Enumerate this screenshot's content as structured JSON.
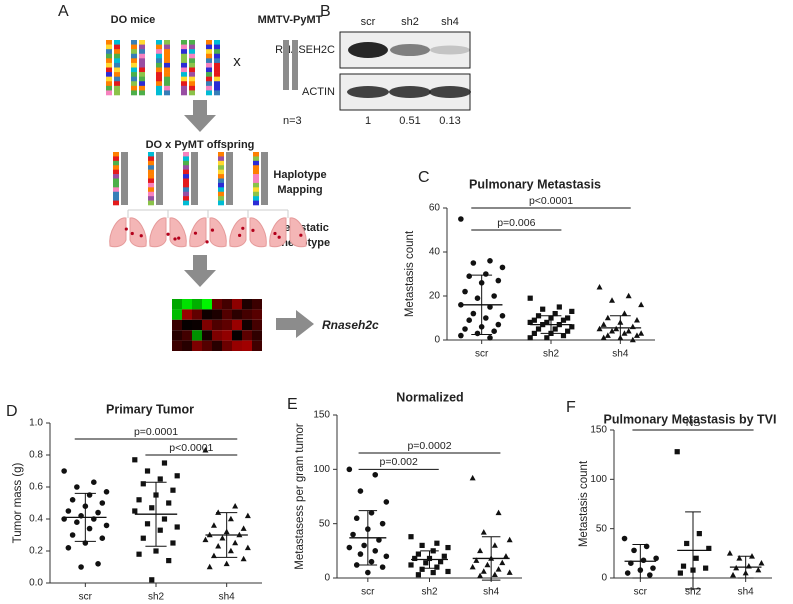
{
  "panel_a": {
    "label": "A",
    "parent1": "DO mice",
    "cross": "x",
    "parent2": "MMTV-PyMT",
    "offspring": "DO x PyMT offspring",
    "step1": [
      "Haplotype",
      "Mapping"
    ],
    "step2": [
      "Metastatic",
      "Phenotype"
    ],
    "gene": "Rnaseh2c"
  },
  "panel_b": {
    "label": "B",
    "lanes": [
      "scr",
      "sh2",
      "sh4"
    ],
    "rows": [
      "RNASEH2C",
      "ACTIN"
    ],
    "n_label": "n=3",
    "ratios": [
      1,
      0.51,
      0.13
    ],
    "ratio_labels": [
      "1",
      "0.51",
      "0.13"
    ]
  },
  "chart_data": [
    {
      "type": "dot",
      "label": "C",
      "title": "Pulmonary Metastasis",
      "y_label": "Metastasis count",
      "categories": [
        "scr",
        "sh2",
        "sh4"
      ],
      "markers": [
        "circle",
        "square",
        "triangle"
      ],
      "color": "#111111",
      "points": [
        [
          55,
          36,
          35,
          33,
          30,
          29,
          27,
          26,
          22,
          20,
          19,
          16,
          15,
          12,
          11,
          10,
          9,
          7,
          6,
          5,
          4,
          3,
          2,
          1
        ],
        [
          19,
          15,
          14,
          13,
          12,
          11,
          10,
          10,
          9,
          9,
          8,
          8,
          7,
          7,
          6,
          5,
          5,
          4,
          3,
          3,
          2,
          1,
          1
        ],
        [
          24,
          20,
          18,
          16,
          12,
          10,
          9,
          8,
          7,
          6,
          5,
          5,
          4,
          4,
          3,
          3,
          2,
          2,
          1,
          1,
          0
        ]
      ],
      "means": [
        16,
        7,
        5.5
      ],
      "sds": [
        13.5,
        4,
        5.5
      ],
      "comparisons": [
        {
          "groups": [
            0,
            1
          ],
          "y": 50,
          "label": "p=0.006"
        },
        {
          "groups": [
            0,
            2
          ],
          "y": 60,
          "label": "p<0.0001"
        }
      ],
      "ylim": [
        0,
        60
      ],
      "yticks": [
        0,
        20,
        40,
        60
      ]
    },
    {
      "type": "dot",
      "label": "D",
      "title": "Primary Tumor",
      "y_label": "Tumor mass (g)",
      "categories": [
        "scr",
        "sh2",
        "sh4"
      ],
      "markers": [
        "circle",
        "square",
        "triangle"
      ],
      "color": "#111111",
      "points": [
        [
          0.7,
          0.63,
          0.6,
          0.57,
          0.55,
          0.52,
          0.5,
          0.48,
          0.45,
          0.44,
          0.42,
          0.4,
          0.4,
          0.38,
          0.36,
          0.34,
          0.3,
          0.28,
          0.25,
          0.22,
          0.12,
          0.1
        ],
        [
          0.77,
          0.75,
          0.7,
          0.67,
          0.65,
          0.62,
          0.58,
          0.55,
          0.52,
          0.5,
          0.47,
          0.45,
          0.4,
          0.37,
          0.35,
          0.33,
          0.28,
          0.25,
          0.2,
          0.18,
          0.14,
          0.02
        ],
        [
          0.83,
          0.48,
          0.44,
          0.42,
          0.4,
          0.36,
          0.34,
          0.32,
          0.3,
          0.3,
          0.28,
          0.27,
          0.25,
          0.23,
          0.22,
          0.2,
          0.17,
          0.15,
          0.12,
          0.1
        ]
      ],
      "means": [
        0.41,
        0.43,
        0.3
      ],
      "sds": [
        0.15,
        0.2,
        0.14
      ],
      "comparisons": [
        {
          "groups": [
            0,
            2
          ],
          "y": 0.9,
          "label": "p=0.0001"
        },
        {
          "groups": [
            1,
            2
          ],
          "y": 0.8,
          "label": "p<0.0001"
        }
      ],
      "ylim": [
        0,
        1.0
      ],
      "yticks": [
        {
          "value": 0,
          "label": "0.0"
        },
        0.2,
        0.4,
        0.6,
        0.8,
        {
          "value": 1.0,
          "label": "1.0"
        }
      ]
    },
    {
      "type": "dot",
      "label": "E",
      "title": "Normalized",
      "y_label": "Metastasess per gram tumor",
      "categories": [
        "scr",
        "sh2",
        "sh4"
      ],
      "markers": [
        "circle",
        "square",
        "triangle"
      ],
      "color": "#111111",
      "points": [
        [
          100,
          95,
          80,
          70,
          60,
          55,
          50,
          45,
          40,
          35,
          30,
          28,
          25,
          22,
          20,
          15,
          12,
          10,
          5
        ],
        [
          38,
          32,
          30,
          28,
          25,
          22,
          20,
          18,
          18,
          15,
          14,
          12,
          10,
          8,
          6,
          5,
          3
        ],
        [
          92,
          60,
          42,
          35,
          30,
          25,
          20,
          18,
          16,
          14,
          12,
          10,
          8,
          6,
          5,
          3,
          2
        ]
      ],
      "means": [
        37,
        17,
        18
      ],
      "sds": [
        25,
        8,
        20
      ],
      "comparisons": [
        {
          "groups": [
            0,
            1
          ],
          "y": 100,
          "label": "p=0.002"
        },
        {
          "groups": [
            0,
            2
          ],
          "y": 115,
          "label": "p=0.0002"
        }
      ],
      "ylim": [
        0,
        150
      ],
      "yticks": [
        0,
        50,
        100,
        150
      ]
    },
    {
      "type": "dot",
      "label": "F",
      "title": "Pulmonary Metastasis by TVI",
      "y_label": "Metastasis count",
      "categories": [
        "scr",
        "sh2",
        "sh4"
      ],
      "markers": [
        "circle",
        "square",
        "triangle"
      ],
      "color": "#111111",
      "points": [
        [
          40,
          32,
          28,
          20,
          18,
          15,
          10,
          8,
          5,
          3
        ],
        [
          128,
          45,
          35,
          30,
          20,
          12,
          10,
          8,
          5
        ],
        [
          25,
          22,
          20,
          15,
          12,
          10,
          8,
          5,
          3
        ]
      ],
      "means": [
        17,
        28,
        11
      ],
      "sds": [
        17,
        39,
        11
      ],
      "comparisons": [
        {
          "groups": [
            0,
            2
          ],
          "y": 150,
          "label": "NS"
        }
      ],
      "ylim": [
        0,
        150
      ],
      "yticks": [
        0,
        50,
        100,
        150
      ]
    }
  ]
}
